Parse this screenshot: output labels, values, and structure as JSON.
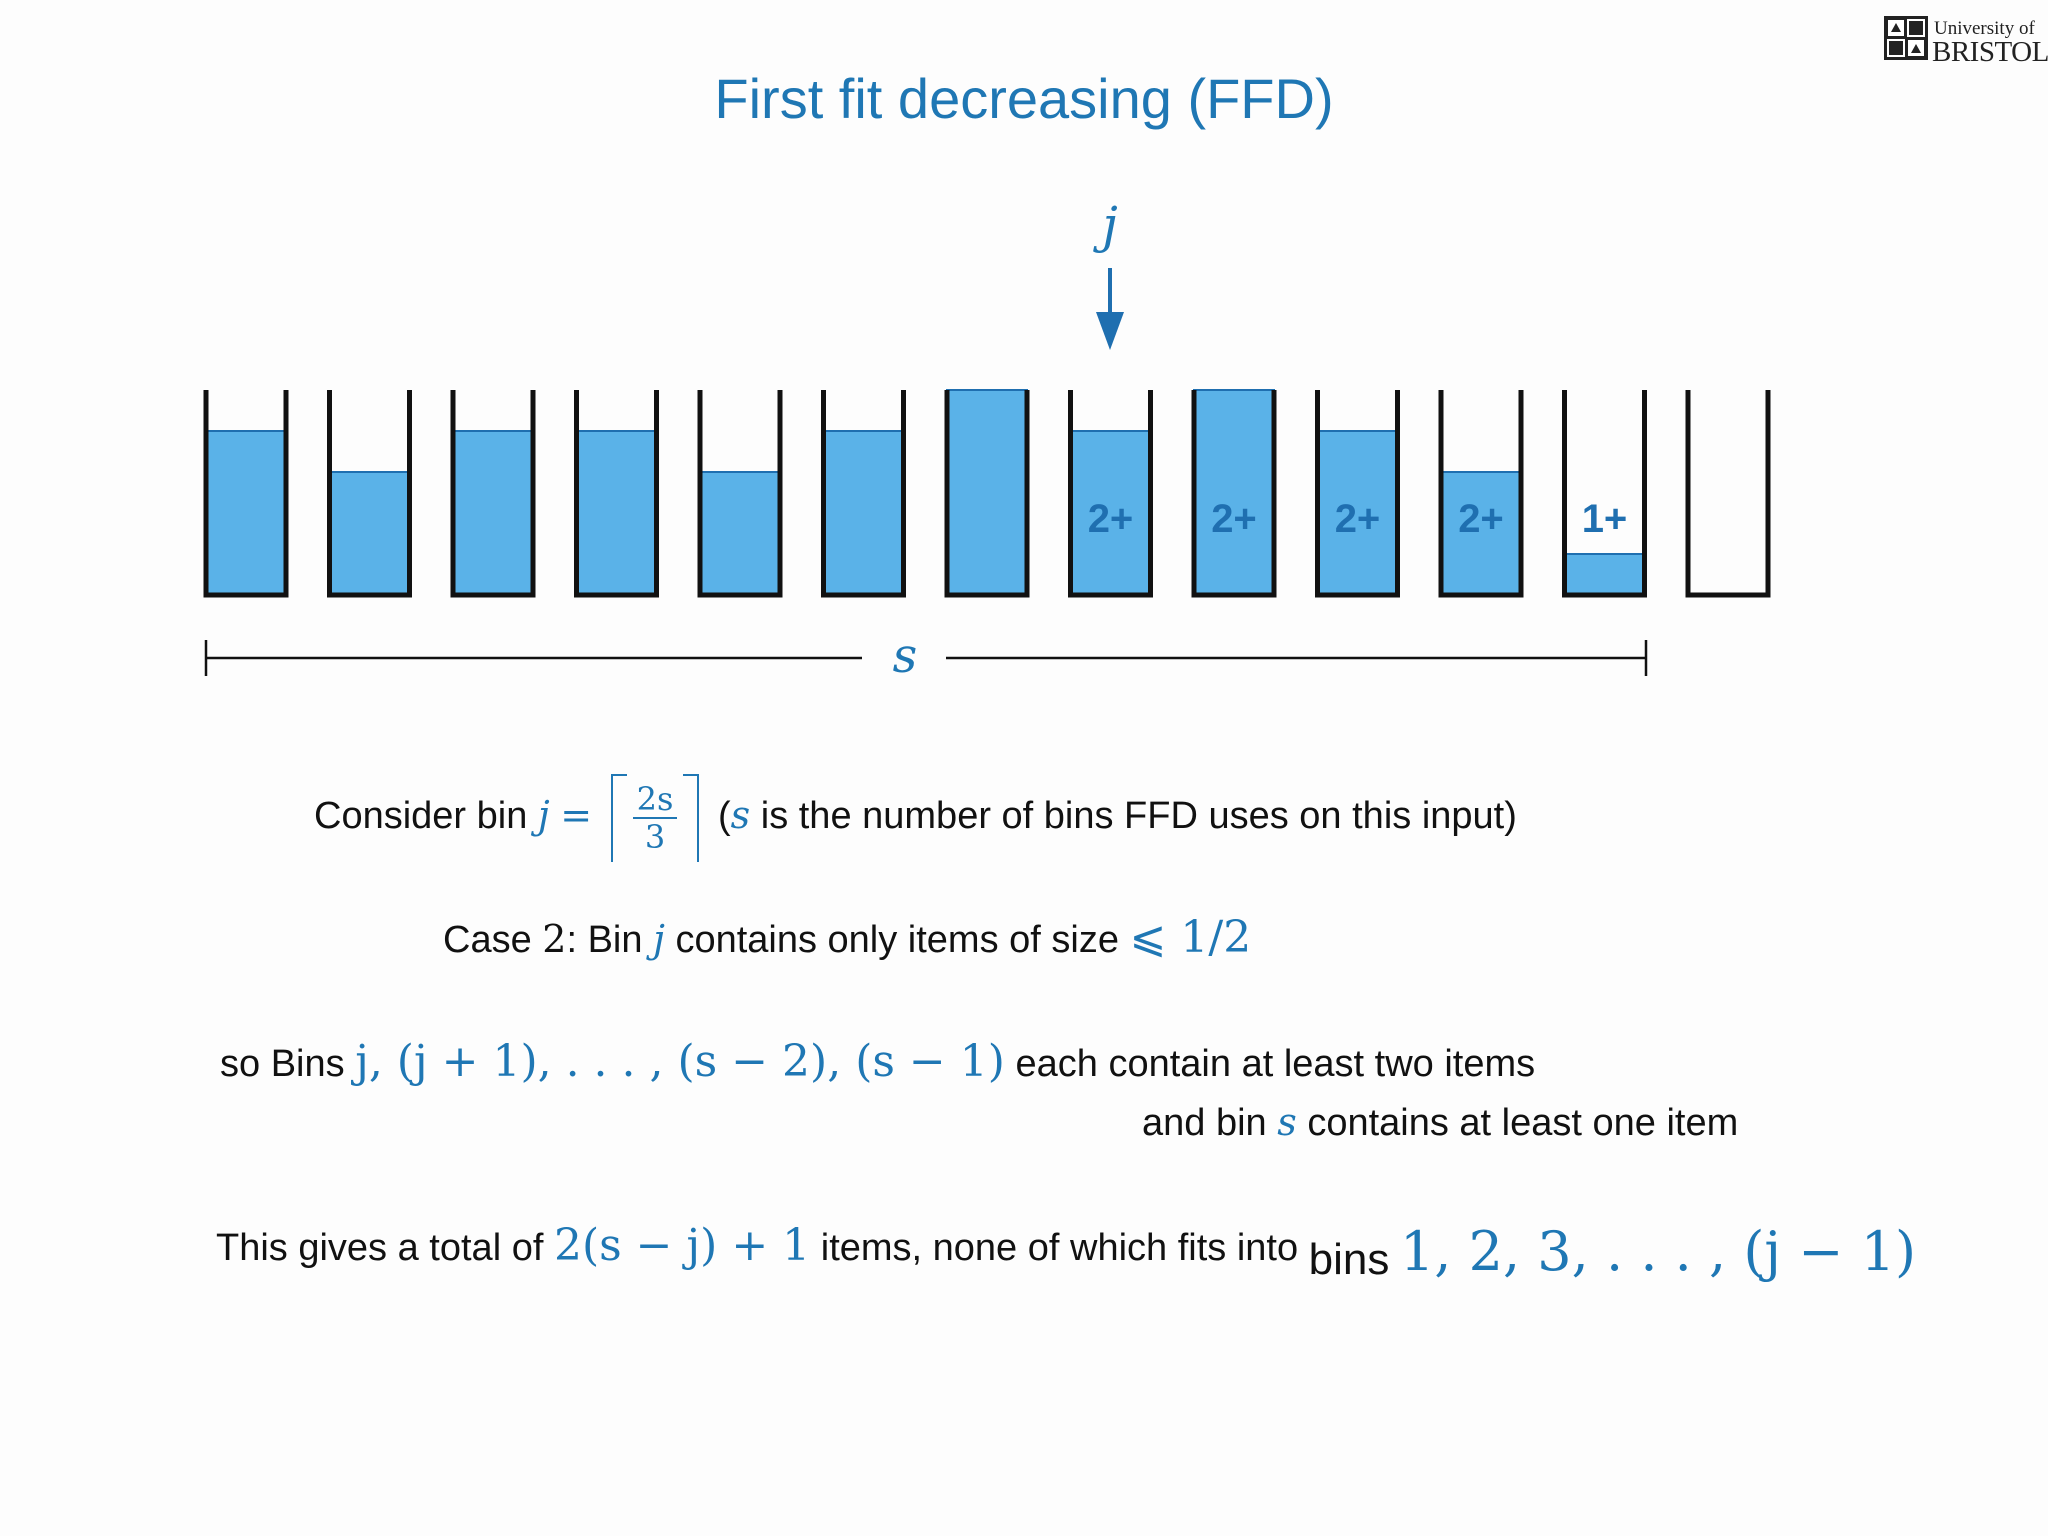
{
  "title": "First fit decreasing (FFD)",
  "logo": {
    "line1": "University of",
    "line2": "BRISTOL"
  },
  "diagram": {
    "pointer_label": "j",
    "span_label": "s",
    "fill_color": "#5ab2e8",
    "label_color": "#1f6fb0",
    "bins": [
      {
        "fill": 0.8,
        "label": ""
      },
      {
        "fill": 0.6,
        "label": ""
      },
      {
        "fill": 0.8,
        "label": ""
      },
      {
        "fill": 0.8,
        "label": ""
      },
      {
        "fill": 0.6,
        "label": ""
      },
      {
        "fill": 0.8,
        "label": ""
      },
      {
        "fill": 1.0,
        "label": ""
      },
      {
        "fill": 0.8,
        "label": "2+"
      },
      {
        "fill": 1.0,
        "label": "2+"
      },
      {
        "fill": 0.8,
        "label": "2+"
      },
      {
        "fill": 0.6,
        "label": "2+"
      },
      {
        "fill": 0.2,
        "label": "1+"
      },
      {
        "fill": 0.0,
        "label": ""
      }
    ]
  },
  "text": {
    "consider": {
      "prefix": "Consider bin",
      "var": "j",
      "eq": "=",
      "num": "2s",
      "den": "3",
      "paren_open": "(",
      "paren_var": "s",
      "suffix": "is the number of bins FFD uses on this input)"
    },
    "case2": {
      "prefix": "Case",
      "num": "2",
      "mid": ": Bin",
      "var": "j",
      "suffix": "contains only items of size",
      "bound": "⩽ 1/2"
    },
    "bins_line": {
      "prefix": "so Bins",
      "expr": "j, (j + 1), . . . , (s − 2), (s − 1)",
      "suffix": "each contain at least two items"
    },
    "bin_s_line": {
      "prefix": "and bin",
      "var": "s",
      "suffix": "contains at least one item"
    },
    "total_line": {
      "prefix": "This gives a total of",
      "expr": "2(s − j) + 1",
      "mid": "items, none of which fits into",
      "bins_word": "bins",
      "bins_expr": "1, 2, 3, . . . , (j − 1)"
    }
  }
}
